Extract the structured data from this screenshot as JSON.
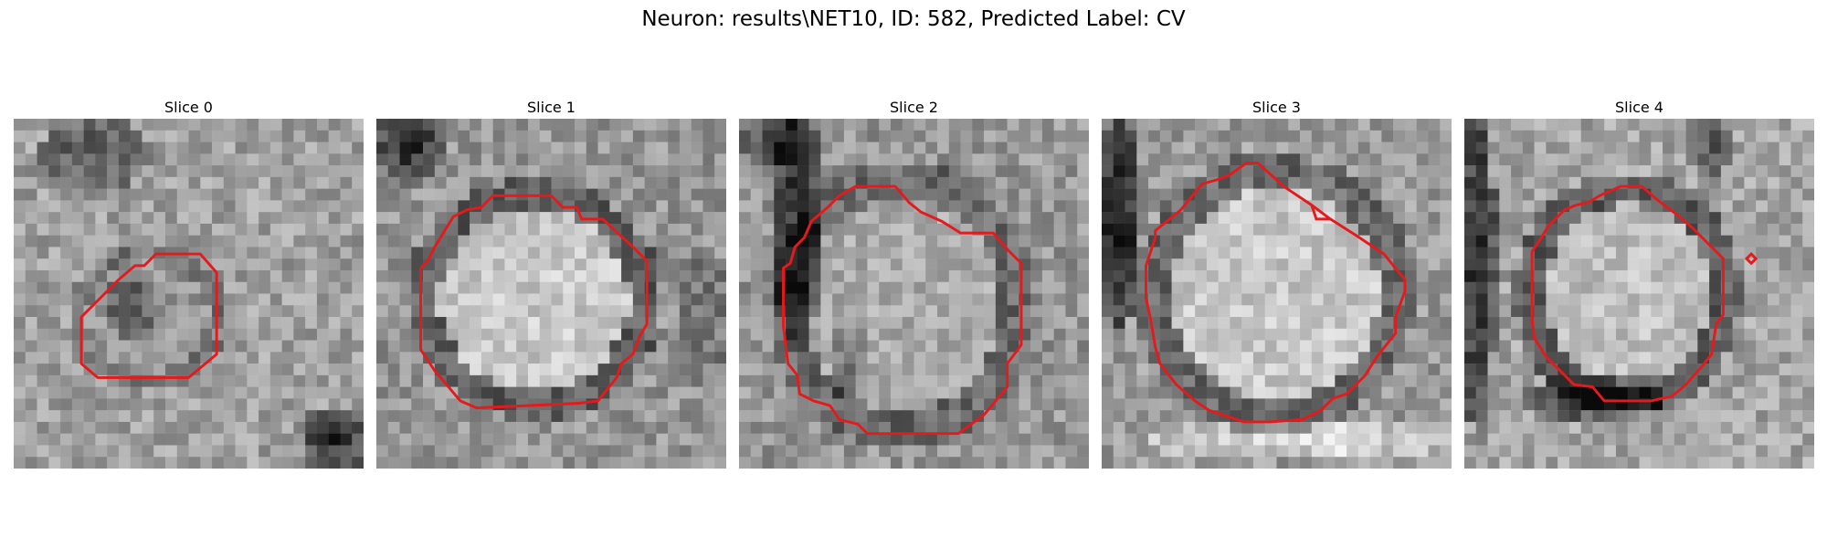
{
  "figure": {
    "title": "Neuron: results\\NET10, ID: 582, Predicted Label: CV"
  },
  "panels": [
    {
      "title": "Slice 0"
    },
    {
      "title": "Slice 1"
    },
    {
      "title": "Slice 2"
    },
    {
      "title": "Slice 3"
    },
    {
      "title": "Slice 4"
    }
  ],
  "colors": {
    "contour": "#e41a1c",
    "background": "#ffffff"
  },
  "image": {
    "colormap": "grayscale",
    "grid": "30x30 pixels per slice"
  }
}
